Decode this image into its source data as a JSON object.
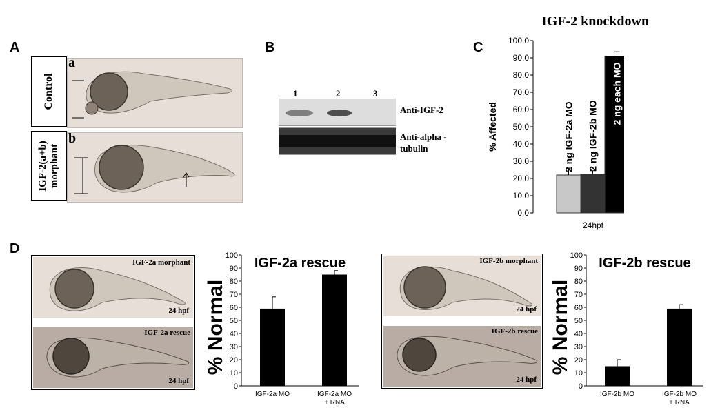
{
  "panels": {
    "A": {
      "letter": "A",
      "images": [
        {
          "sublabel": "a",
          "side_label": "Control"
        },
        {
          "sublabel": "b",
          "side_label": "IGF-2(a+b) morphant"
        }
      ]
    },
    "B": {
      "letter": "B",
      "lanes": [
        "1",
        "2",
        "3"
      ],
      "rows": [
        "Anti-IGF-2",
        "Anti-alpha -tubulin"
      ]
    },
    "C": {
      "letter": "C"
    },
    "D": {
      "letter": "D",
      "image_sets": [
        {
          "top_label": "IGF-2a morphant",
          "top_time": "24 hpf",
          "bottom_label": "IGF-2a rescue",
          "bottom_time": "24 hpf"
        },
        {
          "top_label": "IGF-2b morphant",
          "top_time": "24 hpf",
          "bottom_label": "IGF-2b rescue",
          "bottom_time": "24 hpf"
        }
      ]
    }
  },
  "chart_data": [
    {
      "id": "C",
      "type": "bar",
      "title": "IGF-2 knockdown",
      "ylabel": "% Affected",
      "xlabel": "24hpf",
      "ylim": [
        0,
        100
      ],
      "yticks": [
        "0.0",
        "10.0",
        "20.0",
        "30.0",
        "40.0",
        "50.0",
        "60.0",
        "70.0",
        "80.0",
        "90.0",
        "100.0"
      ],
      "categories": [
        "2 ng IGF-2a MO",
        "2 ng IGF-2b MO",
        "2 ng each MO"
      ],
      "values": [
        22,
        22.5,
        91
      ],
      "errors": [
        4,
        2,
        2.5
      ],
      "colors": [
        "#c8c8c8",
        "#333333",
        "#000000"
      ],
      "bar_label_colors": [
        "#000000",
        "#ffffff",
        "#ffffff"
      ]
    },
    {
      "id": "D1",
      "type": "bar",
      "title": "IGF-2a rescue",
      "ylabel": "% Normal",
      "ylim": [
        0,
        100
      ],
      "yticks": [
        "0",
        "10",
        "20",
        "30",
        "40",
        "50",
        "60",
        "70",
        "80",
        "90",
        "100"
      ],
      "categories": [
        "IGF-2a MO",
        "IGF-2a MO\n+ RNA"
      ],
      "values": [
        59,
        85
      ],
      "errors": [
        9,
        3
      ],
      "colors": [
        "#000000",
        "#000000"
      ]
    },
    {
      "id": "D2",
      "type": "bar",
      "title": "IGF-2b rescue",
      "ylabel": "% Normal",
      "ylim": [
        0,
        100
      ],
      "yticks": [
        "0",
        "10",
        "20",
        "30",
        "40",
        "50",
        "60",
        "70",
        "80",
        "90",
        "100"
      ],
      "categories": [
        "IGF-2b MO",
        "IGF-2b MO\n+ RNA"
      ],
      "values": [
        15,
        59
      ],
      "errors": [
        5,
        3
      ],
      "colors": [
        "#000000",
        "#000000"
      ]
    }
  ]
}
